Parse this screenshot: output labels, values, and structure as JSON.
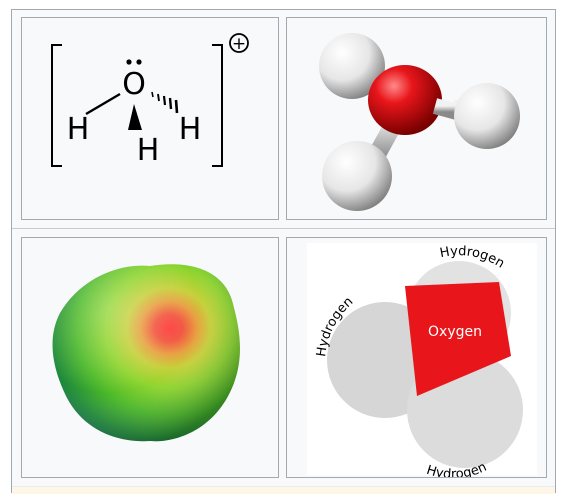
{
  "lewis": {
    "center_atom": "O",
    "left_h": "H",
    "right_h": "H",
    "bottom_h": "H",
    "charge": "+"
  },
  "space_fill": {
    "oxygen_label": "Oxygen",
    "hydrogen_top": "Hydrogen",
    "hydrogen_left": "Hydrogen",
    "hydrogen_bottom": "Hydrogen"
  },
  "colors": {
    "oxygen": "#e8161b",
    "hydrogen": "#e2e2e2",
    "border": "#a2a9b1",
    "panel_bg": "#f8f9fa"
  }
}
